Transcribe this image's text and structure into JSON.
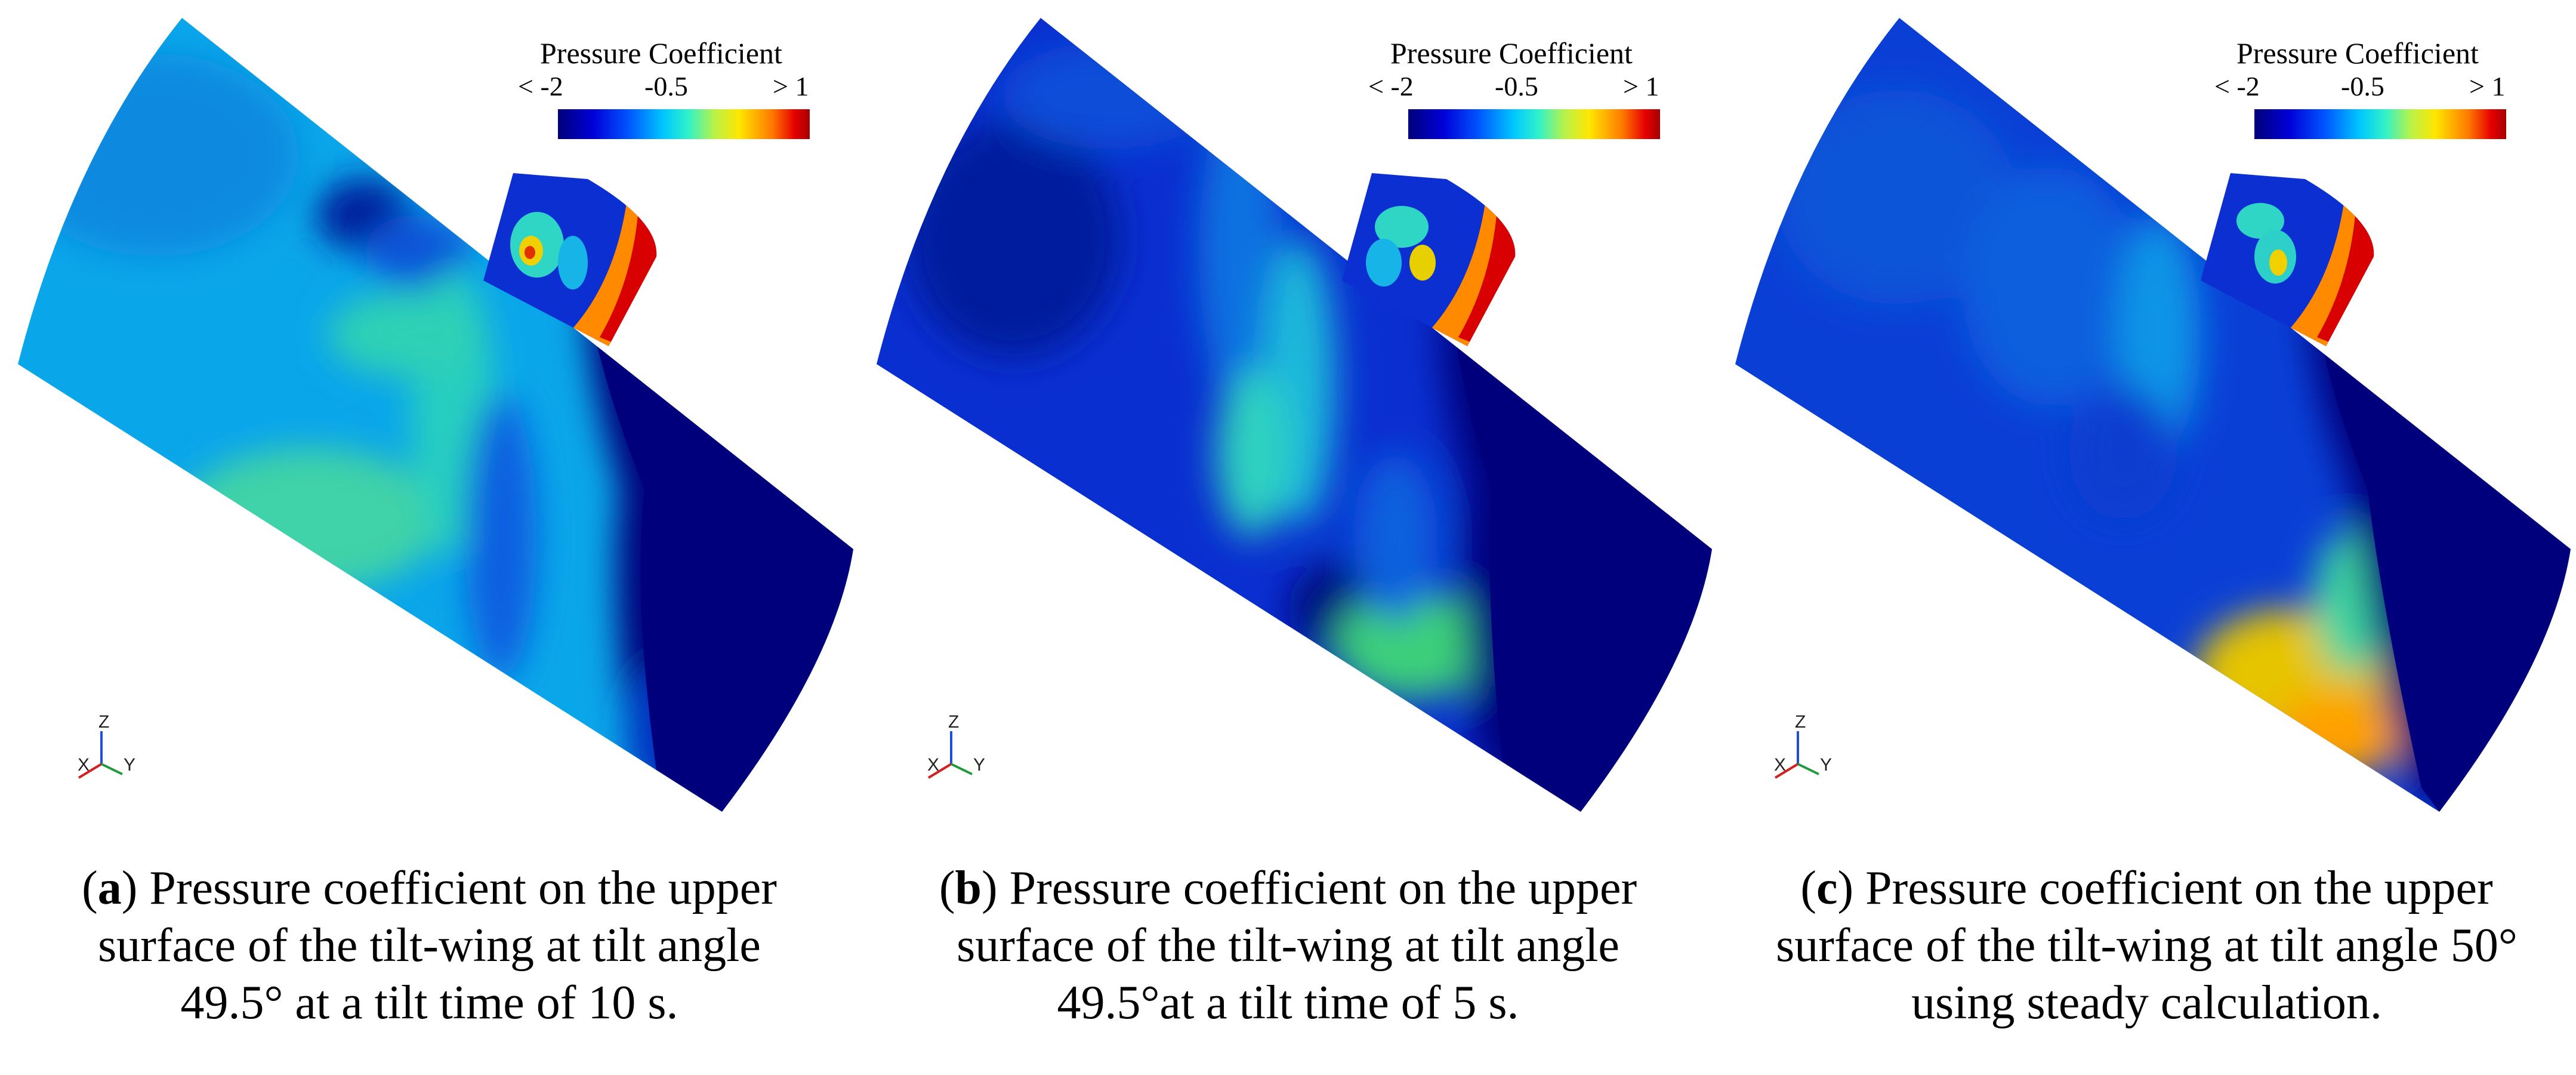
{
  "legend": {
    "title": "Pressure Coefficient",
    "ticks": [
      "< -2",
      "-0.5",
      "> 1"
    ]
  },
  "axes_labels": {
    "z": "Z",
    "x": "X",
    "y": "Y"
  },
  "panels": [
    {
      "label": "a",
      "caption_lines": [
        "Pressure coefficient on the upper",
        "surface of the tilt-wing at tilt angle",
        "49.5° at a tilt time of 10 s."
      ]
    },
    {
      "label": "b",
      "caption_lines": [
        "Pressure coefficient on the upper",
        "surface of the tilt-wing at tilt angle",
        "49.5°at a tilt time of 5 s."
      ]
    },
    {
      "label": "c",
      "caption_lines": [
        "Pressure coefficient on the upper",
        "surface of the tilt-wing at tilt angle 50°",
        "using steady calculation."
      ]
    }
  ],
  "colors": {
    "deep_blue": "#00007a",
    "blue": "#0028d0",
    "light_blue": "#0a8fe6",
    "cyan": "#19c8df",
    "green": "#7bd65a",
    "yellow": "#f2d200",
    "red": "#d80000"
  }
}
